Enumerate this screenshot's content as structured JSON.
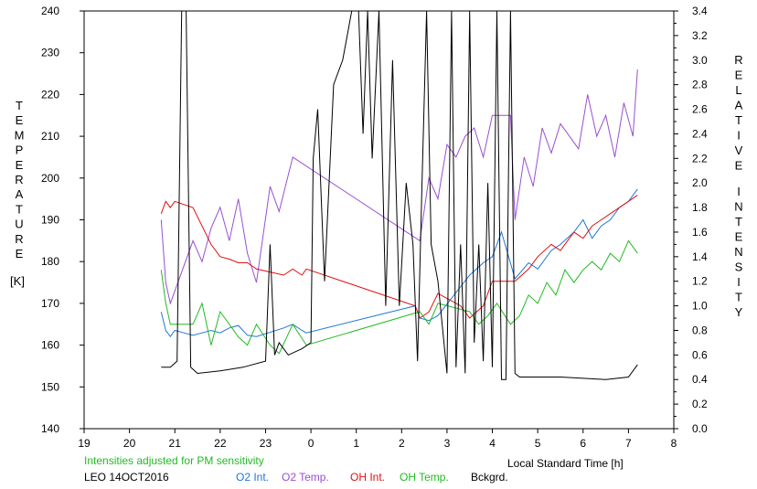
{
  "header": {
    "adjusted_note": "Intensities adjusted for PM sensitivity",
    "station_label": "LEO 14OCT2016"
  },
  "legend": [
    {
      "label": "O2 Int.",
      "color": "#1f77d4"
    },
    {
      "label": "O2 Temp.",
      "color": "#9a4fd0"
    },
    {
      "label": "OH Int.",
      "color": "#e01010"
    },
    {
      "label": "OH Temp.",
      "color": "#22bb22"
    },
    {
      "label": "Bckgrd.",
      "color": "#000000"
    }
  ],
  "chart_data": {
    "type": "line",
    "xlabel": "Local Standard Time [h]",
    "ylabel_left": "TEMPERATURE [K]",
    "ylabel_right": "RELATIVE INTENSITY",
    "x_ticks": [
      "19",
      "20",
      "21",
      "22",
      "23",
      "0",
      "1",
      "2",
      "3",
      "4",
      "5",
      "6",
      "7",
      "8"
    ],
    "y_left_ticks": [
      140,
      150,
      160,
      170,
      180,
      190,
      200,
      210,
      220,
      230,
      240
    ],
    "y_right_ticks": [
      "0.0",
      "0.2",
      "0.4",
      "0.6",
      "0.8",
      "1.0",
      "1.2",
      "1.4",
      "1.6",
      "1.8",
      "2.0",
      "2.2",
      "2.4",
      "2.6",
      "2.8",
      "3.0",
      "3.2",
      "3.4"
    ],
    "x_range": [
      19,
      32
    ],
    "y_left_range": [
      140,
      240
    ],
    "y_right_range": [
      0,
      3.4
    ],
    "series": [
      {
        "name": "O2 Int.",
        "axis": "right",
        "color": "#1f77d4",
        "x": [
          20.7,
          20.8,
          20.9,
          21.0,
          21.2,
          21.4,
          21.6,
          21.8,
          22.0,
          22.2,
          22.4,
          22.6,
          22.8,
          23.4,
          23.6,
          23.8,
          23.9,
          26.3,
          26.4,
          26.6,
          26.8,
          27.5,
          27.8,
          28.0,
          28.2,
          28.5,
          28.8,
          29.0,
          29.3,
          29.5,
          29.8,
          30.0,
          30.2,
          30.4,
          30.6,
          30.8,
          31.0,
          31.2
        ],
        "y": [
          0.95,
          0.8,
          0.75,
          0.8,
          0.78,
          0.76,
          0.78,
          0.8,
          0.78,
          0.82,
          0.84,
          0.76,
          0.75,
          0.82,
          0.85,
          0.8,
          0.78,
          1.0,
          0.9,
          0.88,
          0.92,
          1.25,
          1.35,
          1.4,
          1.6,
          1.22,
          1.35,
          1.3,
          1.45,
          1.5,
          1.6,
          1.7,
          1.55,
          1.65,
          1.7,
          1.8,
          1.85,
          1.95
        ]
      },
      {
        "name": "O2 Temp.",
        "axis": "left",
        "color": "#9a4fd0",
        "x": [
          20.7,
          20.8,
          20.9,
          21.4,
          21.6,
          21.8,
          22.0,
          22.2,
          22.4,
          22.6,
          22.8,
          23.1,
          23.3,
          23.6,
          26.4,
          26.6,
          26.8,
          27.0,
          27.2,
          27.4,
          27.6,
          27.8,
          28.0,
          28.4,
          28.5,
          28.7,
          28.9,
          29.1,
          29.3,
          29.5,
          29.7,
          29.9,
          30.1,
          30.3,
          30.5,
          30.7,
          30.9,
          31.1,
          31.2
        ],
        "y": [
          190,
          175,
          170,
          185,
          180,
          188,
          193,
          185,
          195,
          182,
          175,
          198,
          192,
          205,
          185,
          200,
          195,
          208,
          205,
          210,
          212,
          205,
          215,
          215,
          190,
          205,
          198,
          212,
          206,
          213,
          210,
          207,
          220,
          210,
          215,
          205,
          218,
          210,
          226
        ]
      },
      {
        "name": "OH Int.",
        "axis": "right",
        "color": "#e01010",
        "x": [
          20.7,
          20.8,
          20.9,
          21.0,
          21.4,
          21.6,
          21.8,
          22.0,
          22.2,
          22.4,
          22.6,
          22.8,
          23.4,
          23.6,
          23.8,
          23.9,
          26.3,
          26.4,
          26.6,
          26.8,
          27.3,
          27.5,
          27.8,
          28.0,
          28.2,
          28.5,
          28.8,
          29.0,
          29.3,
          29.5,
          29.8,
          30.0,
          30.2,
          30.4,
          30.6,
          30.8,
          31.0,
          31.2
        ],
        "y": [
          1.75,
          1.85,
          1.8,
          1.85,
          1.8,
          1.65,
          1.5,
          1.4,
          1.38,
          1.35,
          1.35,
          1.3,
          1.25,
          1.3,
          1.25,
          1.3,
          1.0,
          0.9,
          0.95,
          1.1,
          1.0,
          0.9,
          1.0,
          1.2,
          1.2,
          1.2,
          1.3,
          1.4,
          1.5,
          1.45,
          1.6,
          1.55,
          1.65,
          1.7,
          1.75,
          1.8,
          1.85,
          1.9
        ]
      },
      {
        "name": "OH Temp.",
        "axis": "left",
        "color": "#22bb22",
        "x": [
          20.7,
          20.8,
          20.9,
          21.4,
          21.6,
          21.8,
          22.0,
          22.2,
          22.4,
          22.6,
          22.8,
          23.1,
          23.3,
          23.6,
          23.9,
          26.4,
          26.6,
          26.8,
          27.5,
          27.7,
          27.9,
          28.1,
          28.4,
          28.6,
          28.8,
          29.0,
          29.2,
          29.4,
          29.6,
          29.8,
          30.0,
          30.2,
          30.4,
          30.6,
          30.8,
          31.0,
          31.2
        ],
        "y": [
          178,
          170,
          165,
          165,
          170,
          160,
          168,
          165,
          162,
          160,
          165,
          160,
          158,
          165,
          160,
          168,
          165,
          170,
          168,
          165,
          167,
          170,
          165,
          167,
          172,
          170,
          175,
          172,
          178,
          175,
          178,
          180,
          178,
          182,
          180,
          185,
          182
        ]
      },
      {
        "name": "Bckgrd.",
        "axis": "right",
        "color": "#000000",
        "x": [
          20.7,
          20.9,
          21.05,
          21.15,
          21.25,
          21.35,
          21.5,
          22.0,
          22.5,
          23.0,
          23.1,
          23.2,
          23.3,
          23.5,
          23.8,
          24.0,
          24.05,
          24.15,
          24.3,
          24.5,
          24.7,
          24.8,
          24.9,
          25.05,
          25.15,
          25.25,
          25.35,
          25.5,
          25.65,
          25.8,
          25.95,
          26.1,
          26.25,
          26.35,
          26.45,
          26.55,
          26.65,
          26.8,
          27.0,
          27.1,
          27.2,
          27.3,
          27.4,
          27.5,
          27.6,
          27.7,
          27.8,
          27.9,
          28.0,
          28.1,
          28.2,
          28.3,
          28.4,
          28.5,
          28.6,
          29.0,
          29.5,
          30.0,
          30.5,
          31.0,
          31.2
        ],
        "y": [
          0.5,
          0.5,
          0.55,
          3.4,
          3.4,
          0.5,
          0.45,
          0.47,
          0.5,
          0.55,
          1.5,
          0.6,
          0.7,
          0.6,
          0.65,
          0.7,
          2.2,
          2.6,
          1.2,
          2.8,
          3.0,
          3.2,
          3.4,
          3.4,
          2.4,
          3.4,
          2.2,
          3.4,
          1.0,
          3.0,
          1.0,
          2.0,
          1.5,
          0.55,
          2.0,
          3.4,
          1.5,
          1.2,
          0.45,
          3.4,
          0.5,
          1.5,
          0.45,
          3.4,
          0.7,
          1.5,
          0.55,
          2.0,
          0.5,
          3.4,
          0.4,
          0.4,
          3.4,
          0.45,
          0.42,
          0.42,
          0.42,
          0.41,
          0.4,
          0.42,
          0.52
        ]
      }
    ]
  }
}
